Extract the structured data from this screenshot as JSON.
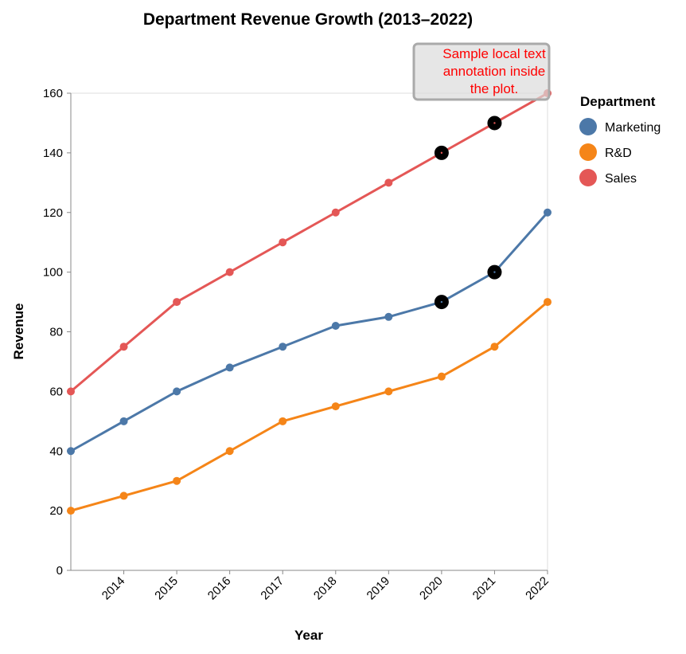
{
  "chart_data": {
    "type": "line",
    "title": "Department Revenue Growth (2013–2022)",
    "xlabel": "Year",
    "ylabel": "Revenue",
    "x": [
      2013,
      2014,
      2015,
      2016,
      2017,
      2018,
      2019,
      2020,
      2021,
      2022
    ],
    "x_tick_labels": [
      "2014",
      "2015",
      "2016",
      "2017",
      "2018",
      "2019",
      "2020",
      "2021",
      "2022"
    ],
    "xlim": [
      2013,
      2022
    ],
    "ylim": [
      0,
      160
    ],
    "y_ticks": [
      "0",
      "20",
      "40",
      "60",
      "80",
      "100",
      "120",
      "140",
      "160"
    ],
    "y_tick_values": [
      0,
      20,
      40,
      60,
      80,
      100,
      120,
      140,
      160
    ],
    "grid": false,
    "legend": {
      "title": "Department",
      "position": "right"
    },
    "series": [
      {
        "name": "Marketing",
        "color": "#4c78a8",
        "values": [
          40,
          50,
          60,
          68,
          75,
          82,
          85,
          90,
          100,
          120
        ]
      },
      {
        "name": "R&D",
        "color": "#f58518",
        "values": [
          20,
          25,
          30,
          40,
          50,
          55,
          60,
          65,
          75,
          90
        ]
      },
      {
        "name": "Sales",
        "color": "#e45756",
        "values": [
          60,
          75,
          90,
          100,
          110,
          120,
          130,
          140,
          150,
          160
        ]
      }
    ],
    "highlights": [
      {
        "series": "Sales",
        "x": 2020
      },
      {
        "series": "Sales",
        "x": 2021
      },
      {
        "series": "Marketing",
        "x": 2020
      },
      {
        "series": "Marketing",
        "x": 2021
      }
    ],
    "annotation": {
      "lines": [
        "Sample local text",
        "annotation inside",
        "the plot."
      ],
      "color": "#ff0000",
      "anchor_x": 2022,
      "anchor_y": 160
    }
  }
}
